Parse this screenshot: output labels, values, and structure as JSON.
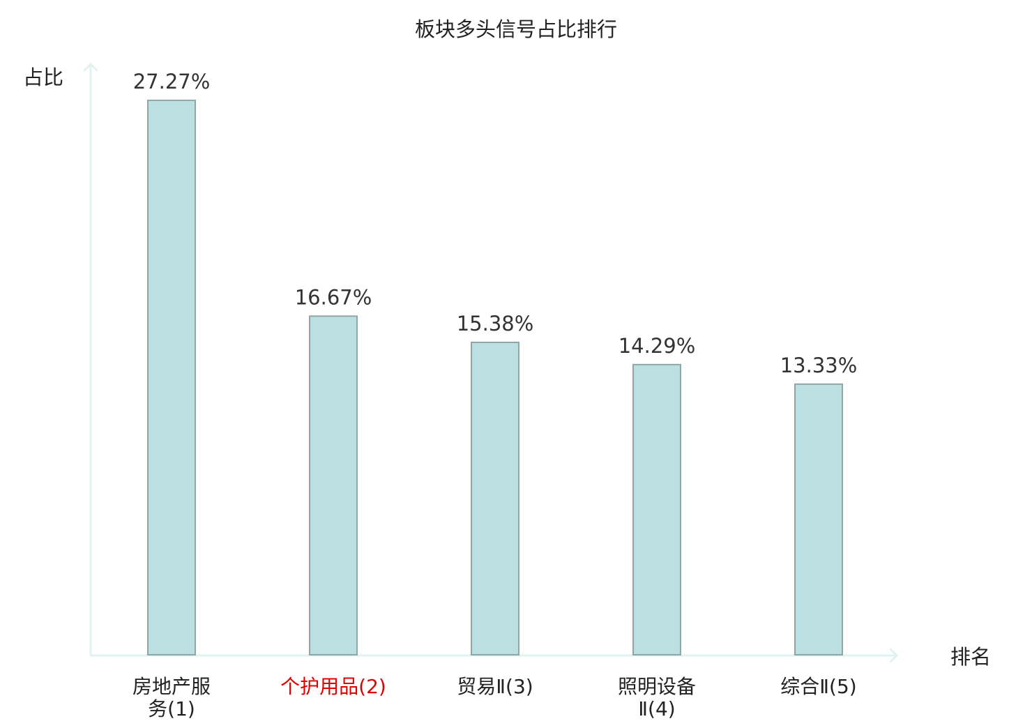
{
  "chart_data": {
    "type": "bar",
    "title": "板块多头信号占比排行",
    "xlabel": "排名",
    "ylabel": "占比",
    "ylim": [
      0,
      28.5
    ],
    "grid": false,
    "legend": "none",
    "categories": [
      [
        "房地产服",
        "务(1)"
      ],
      [
        "个护用品(2)"
      ],
      [
        "贸易Ⅱ(3)"
      ],
      [
        "照明设备",
        "Ⅱ(4)"
      ],
      [
        "综合Ⅱ(5)"
      ]
    ],
    "values": [
      27.27,
      16.67,
      15.38,
      14.29,
      13.33
    ],
    "value_labels": [
      "27.27%",
      "16.67%",
      "15.38%",
      "14.29%",
      "13.33%"
    ],
    "highlight_index": 1,
    "colors": {
      "bar_fill": "#bce0e1",
      "bar_stroke": "#8fa6a6",
      "axis": "#e0f2f1",
      "text": "#222222",
      "value_text": "#333333",
      "highlight_text": "#e00000"
    }
  }
}
